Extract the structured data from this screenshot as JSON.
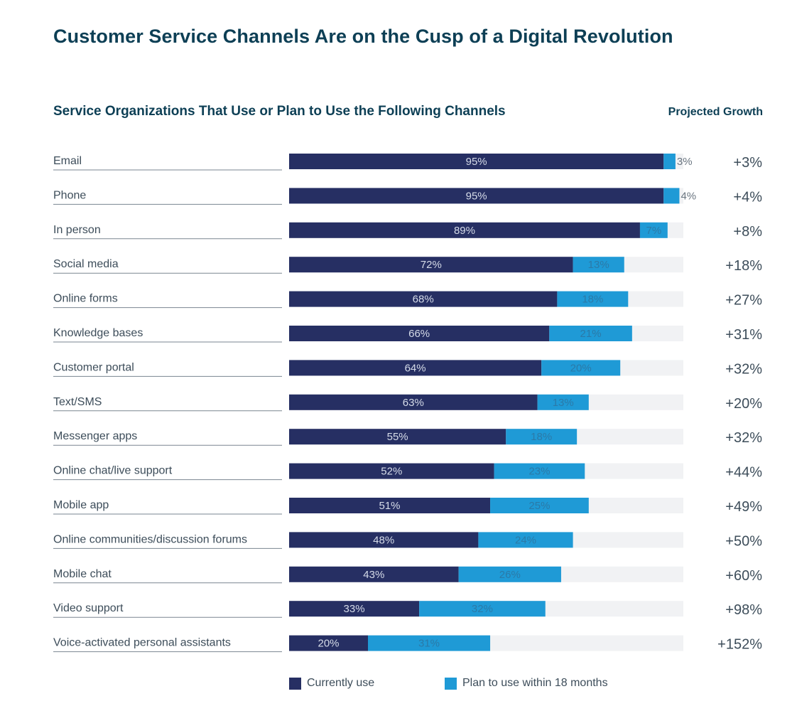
{
  "title": "Customer Service Channels Are on the Cusp of a Digital Revolution",
  "colors": {
    "current": "#262f63",
    "plan": "#1f9ad6",
    "track": "#f1f2f4",
    "title": "#0d3f55",
    "text": "#3d4d5a"
  },
  "legend": {
    "current_label": "Currently use",
    "plan_label": "Plan to use within 18 months"
  },
  "chart_data": {
    "type": "bar",
    "orientation": "horizontal",
    "stacked": true,
    "title": "Service Organizations That Use or Plan to Use the Following Channels",
    "growth_header": "Projected Growth",
    "categories": [
      "Email",
      "Phone",
      "In person",
      "Social media",
      "Online forms",
      "Knowledge bases",
      "Customer portal",
      "Text/SMS",
      "Messenger apps",
      "Online chat/live support",
      "Mobile app",
      "Online communities/discussion forums",
      "Mobile chat",
      "Video support",
      "Voice-activated personal assistants"
    ],
    "series": [
      {
        "name": "Currently use",
        "values": [
          95,
          95,
          89,
          72,
          68,
          66,
          64,
          63,
          55,
          52,
          51,
          48,
          43,
          33,
          20
        ],
        "labels": [
          "95%",
          "95%",
          "89%",
          "72%",
          "68%",
          "66%",
          "64%",
          "63%",
          "55%",
          "52%",
          "51%",
          "48%",
          "43%",
          "33%",
          "20%"
        ]
      },
      {
        "name": "Plan to use within 18 months",
        "values": [
          3,
          4,
          7,
          13,
          18,
          21,
          20,
          13,
          18,
          23,
          25,
          24,
          26,
          32,
          31
        ],
        "labels": [
          "3%",
          "4%",
          "7%",
          "13%",
          "18%",
          "21%",
          "20%",
          "13%",
          "18%",
          "23%",
          "25%",
          "24%",
          "26%",
          "32%",
          "31%"
        ]
      }
    ],
    "projected_growth": [
      "+3%",
      "+4%",
      "+8%",
      "+18%",
      "+27%",
      "+31%",
      "+32%",
      "+20%",
      "+32%",
      "+44%",
      "+49%",
      "+50%",
      "+60%",
      "+98%",
      "+152%"
    ],
    "xlim": [
      0,
      100
    ],
    "legend_position": "bottom"
  }
}
